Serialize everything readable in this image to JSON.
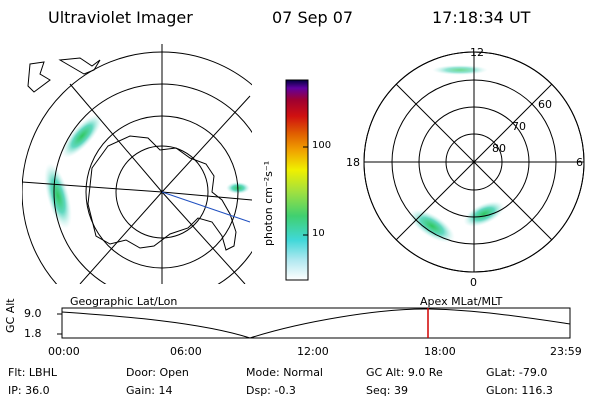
{
  "header": {
    "instrument": "Ultraviolet Imager",
    "date": "07 Sep 07",
    "time": "17:18:34 UT"
  },
  "geo_map": {
    "label": "Geographic Lat/Lon"
  },
  "mag_map": {
    "label": "Apex MLat/MLT",
    "mlt_labels": {
      "top": "12",
      "left": "18",
      "right": "6",
      "bottom": "0"
    },
    "mlat_labels": [
      "60",
      "70",
      "80"
    ]
  },
  "colorbar": {
    "unit": "photon cm⁻²s⁻¹",
    "ticks": [
      "100",
      "10"
    ],
    "colors": [
      "#ffffff",
      "#b0e8f0",
      "#40d8d8",
      "#40d070",
      "#a0e040",
      "#f0f000",
      "#f0a000",
      "#e06000",
      "#d01010",
      "#a00030",
      "#6000a0",
      "#000040"
    ]
  },
  "altitude_plot": {
    "axis_label": "GC Alt",
    "y_ticks": [
      "9.0",
      "1.8"
    ],
    "x_ticks": [
      "00:00",
      "06:00",
      "12:00",
      "18:00",
      "23:59"
    ],
    "marker_color": "#d00000"
  },
  "info": {
    "row1": [
      {
        "label": "Flt:",
        "value": "LBHL"
      },
      {
        "label": "Door:",
        "value": "Open"
      },
      {
        "label": "Mode:",
        "value": "Normal"
      },
      {
        "label": "GC Alt:",
        "value": "9.0 Re"
      },
      {
        "label": "GLat:",
        "value": "-79.0"
      }
    ],
    "row2": [
      {
        "label": "IP:",
        "value": "36.0"
      },
      {
        "label": "Gain:",
        "value": "14"
      },
      {
        "label": "Dsp:",
        "value": "-0.3"
      },
      {
        "label": "Seq:",
        "value": "39"
      },
      {
        "label": "GLon:",
        "value": "116.3"
      }
    ]
  }
}
